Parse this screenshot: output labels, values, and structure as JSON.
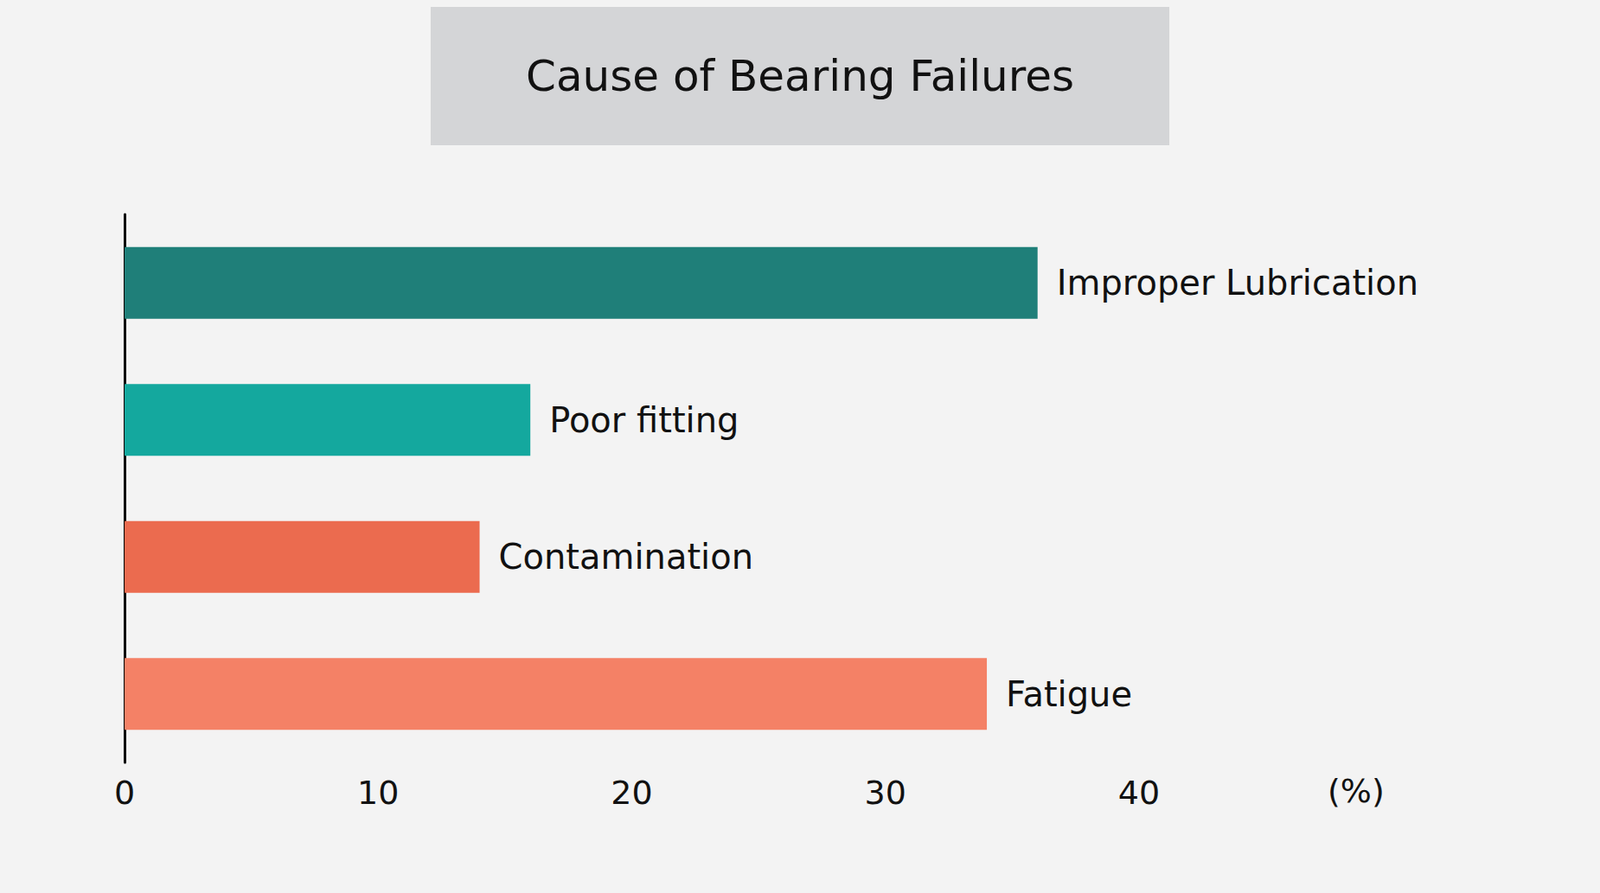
{
  "chart_data": {
    "type": "bar",
    "title": "Cause of Bearing Failures",
    "orientation": "horizontal",
    "categories": [
      "Improper Lubrication",
      "Poor fitting",
      "Contamination",
      "Fatigue"
    ],
    "values": [
      36,
      16,
      14,
      34
    ],
    "colors": [
      "#1f7f79",
      "#14a89e",
      "#eb6b4f",
      "#f48166"
    ],
    "xlim": [
      0,
      40
    ],
    "xticks": [
      0,
      10,
      20,
      30,
      40
    ],
    "xlabel": "(%)",
    "grid": false,
    "tick_labels": "x"
  }
}
